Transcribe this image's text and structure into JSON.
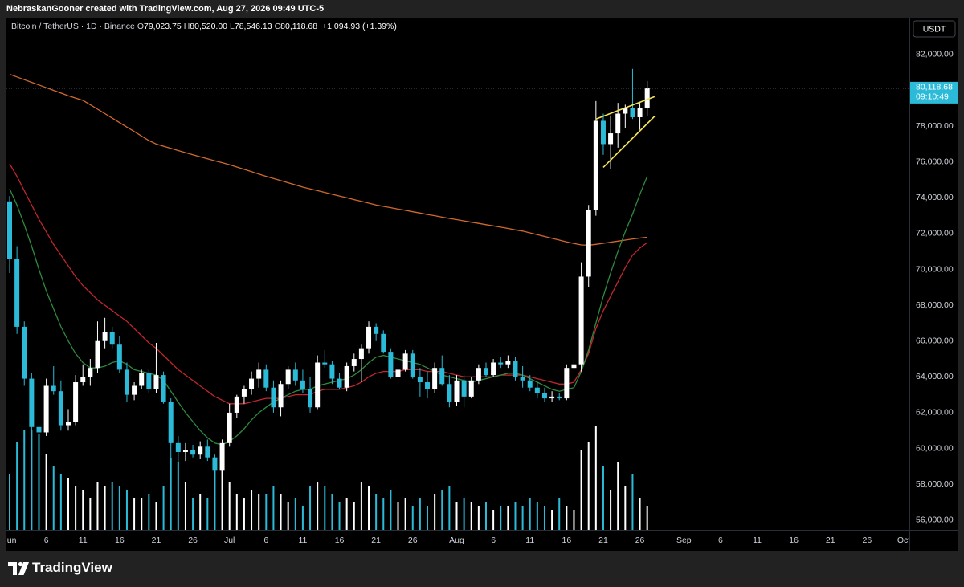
{
  "attribution": "NebraskanGooner created with TradingView.com, Aug 27, 2026 09:49 UTC-5",
  "brand": "TradingView",
  "chart_data": {
    "type": "candlestick",
    "title": "Bitcoin / TetherUS · 1D · Binance",
    "status_line": [
      {
        "label": "O",
        "value": "79,023.75"
      },
      {
        "label": "H",
        "value": "80,520.00"
      },
      {
        "label": "L",
        "value": "78,546.13"
      },
      {
        "label": "C",
        "value": "80,118.68"
      }
    ],
    "change": "+1,094.93 (+1.39%)",
    "currency": "USDT",
    "last_price": {
      "label": "80,118.68",
      "countdown": "09:10:49"
    },
    "up_color": "#ffffff",
    "down_color": "#2bbbd8",
    "x": [
      "Jun 1",
      "Jun 2",
      "Jun 3",
      "Jun 4",
      "Jun 5",
      "Jun 6",
      "Jun 7",
      "Jun 8",
      "Jun 9",
      "Jun 10",
      "Jun 11",
      "Jun 12",
      "Jun 13",
      "Jun 14",
      "Jun 15",
      "Jun 16",
      "Jun 17",
      "Jun 18",
      "Jun 19",
      "Jun 20",
      "Jun 21",
      "Jun 22",
      "Jun 23",
      "Jun 24",
      "Jun 25",
      "Jun 26",
      "Jun 27",
      "Jun 28",
      "Jun 29",
      "Jun 30",
      "Jul 1",
      "Jul 2",
      "Jul 3",
      "Jul 4",
      "Jul 5",
      "Jul 6",
      "Jul 7",
      "Jul 8",
      "Jul 9",
      "Jul 10",
      "Jul 11",
      "Jul 12",
      "Jul 13",
      "Jul 14",
      "Jul 15",
      "Jul 16",
      "Jul 17",
      "Jul 18",
      "Jul 19",
      "Jul 20",
      "Jul 21",
      "Jul 22",
      "Jul 23",
      "Jul 24",
      "Jul 25",
      "Jul 26",
      "Jul 27",
      "Jul 28",
      "Jul 29",
      "Jul 30",
      "Jul 31",
      "Aug 1",
      "Aug 2",
      "Aug 3",
      "Aug 4",
      "Aug 5",
      "Aug 6",
      "Aug 7",
      "Aug 8",
      "Aug 9",
      "Aug 10",
      "Aug 11",
      "Aug 12",
      "Aug 13",
      "Aug 14",
      "Aug 15",
      "Aug 16",
      "Aug 17",
      "Aug 18",
      "Aug 19",
      "Aug 20",
      "Aug 21",
      "Aug 22",
      "Aug 23",
      "Aug 24",
      "Aug 25",
      "Aug 26",
      "Aug 27"
    ],
    "open": [
      73800,
      70600,
      66800,
      63900,
      61200,
      60900,
      63500,
      63200,
      61300,
      61500,
      63700,
      64000,
      64500,
      66000,
      66500,
      65800,
      64400,
      63000,
      63500,
      64200,
      63300,
      64100,
      62600,
      60300,
      59800,
      59900,
      59700,
      60100,
      59500,
      58800,
      60300,
      62000,
      62900,
      63300,
      63900,
      64400,
      63400,
      62300,
      63600,
      64400,
      63800,
      63300,
      62300,
      64800,
      64700,
      63900,
      63400,
      64600,
      65000,
      65600,
      66800,
      66400,
      65400,
      64000,
      64400,
      65300,
      64000,
      63700,
      63300,
      64500,
      63600,
      62600,
      63800,
      62900,
      63800,
      64500,
      64100,
      64800,
      64700,
      64900,
      64000,
      63800,
      63400,
      63100,
      62800,
      62900,
      62800,
      64500,
      64700,
      69600,
      73300,
      78300,
      77000,
      77600,
      78700,
      79000,
      78500,
      79023.75
    ],
    "high": [
      74100,
      71300,
      67100,
      64200,
      61800,
      63900,
      64600,
      63800,
      62200,
      64100,
      64700,
      65000,
      67100,
      67300,
      66800,
      66300,
      64800,
      63700,
      64400,
      64400,
      65900,
      64300,
      62800,
      60700,
      60300,
      60200,
      60400,
      60500,
      59700,
      60500,
      62500,
      63000,
      63500,
      64300,
      64800,
      64700,
      63800,
      63800,
      64600,
      64800,
      64400,
      64000,
      65200,
      65500,
      64900,
      64200,
      64800,
      65300,
      65800,
      67100,
      67000,
      66600,
      65600,
      64500,
      65500,
      65500,
      64500,
      64300,
      64800,
      65200,
      64100,
      64100,
      64100,
      64000,
      64700,
      64800,
      65000,
      65100,
      65200,
      65100,
      64600,
      64100,
      63700,
      63400,
      63200,
      63100,
      64700,
      65000,
      70400,
      73600,
      79400,
      78700,
      78600,
      79300,
      79200,
      81200,
      79300,
      80520
    ],
    "low": [
      69800,
      66400,
      63500,
      60300,
      60500,
      60700,
      63000,
      61000,
      61000,
      61300,
      63500,
      63500,
      64200,
      65600,
      65600,
      64200,
      62600,
      62700,
      63300,
      63100,
      63100,
      62500,
      58600,
      58900,
      59300,
      59500,
      59400,
      59300,
      58400,
      58400,
      60100,
      61700,
      62500,
      63000,
      63400,
      63200,
      62000,
      61800,
      63300,
      63500,
      63100,
      62000,
      62200,
      64500,
      63600,
      63300,
      63200,
      64300,
      63700,
      65300,
      66000,
      65300,
      63900,
      63600,
      64300,
      63900,
      62900,
      62800,
      63100,
      63500,
      62300,
      62400,
      62300,
      62800,
      63600,
      64000,
      64000,
      64500,
      64500,
      63800,
      63400,
      63200,
      62800,
      62600,
      62600,
      62700,
      62700,
      64400,
      64300,
      69000,
      73000,
      76400,
      75600,
      76800,
      77900,
      78400,
      77800,
      78546.13
    ],
    "close": [
      70600,
      66800,
      63900,
      61200,
      60900,
      63500,
      63200,
      61300,
      61500,
      63700,
      64000,
      64500,
      66000,
      66500,
      65800,
      64400,
      63000,
      63500,
      64200,
      63300,
      64100,
      62600,
      60300,
      59800,
      59900,
      59700,
      60100,
      59500,
      58800,
      60300,
      62000,
      62900,
      63300,
      63900,
      64400,
      63400,
      62300,
      63600,
      64400,
      63800,
      63300,
      62300,
      64800,
      64700,
      63900,
      63400,
      64600,
      65000,
      65600,
      66800,
      66400,
      65400,
      64000,
      64400,
      65300,
      64000,
      63700,
      63300,
      64500,
      63600,
      62600,
      63800,
      62900,
      63800,
      64500,
      64100,
      64800,
      64700,
      64900,
      64000,
      63800,
      63400,
      63100,
      62800,
      62900,
      62800,
      64500,
      64700,
      69600,
      73300,
      78300,
      77000,
      77600,
      78700,
      79000,
      78500,
      79023.75,
      80118.68
    ],
    "volume": [
      70,
      110,
      125,
      125,
      120,
      95,
      80,
      70,
      65,
      55,
      50,
      40,
      60,
      55,
      60,
      55,
      50,
      40,
      40,
      45,
      35,
      55,
      90,
      85,
      60,
      40,
      45,
      40,
      85,
      75,
      60,
      45,
      40,
      50,
      45,
      45,
      55,
      45,
      35,
      40,
      30,
      55,
      60,
      55,
      45,
      35,
      40,
      35,
      60,
      55,
      45,
      40,
      50,
      35,
      40,
      30,
      40,
      30,
      45,
      50,
      55,
      35,
      40,
      35,
      30,
      35,
      25,
      30,
      30,
      35,
      30,
      40,
      35,
      30,
      25,
      40,
      30,
      25,
      100,
      110,
      130,
      80,
      50,
      85,
      55,
      70,
      40,
      30
    ],
    "lines": [
      {
        "color": "#d2692d",
        "values": [
          80900,
          80750,
          80600,
          80450,
          80300,
          80150,
          80000,
          79850,
          79700,
          79570,
          79440,
          79200,
          78950,
          78700,
          78450,
          78200,
          77950,
          77700,
          77450,
          77200,
          77000,
          76880,
          76760,
          76640,
          76520,
          76400,
          76290,
          76180,
          76070,
          75960,
          75850,
          75720,
          75590,
          75460,
          75330,
          75200,
          75080,
          74960,
          74840,
          74720,
          74600,
          74500,
          74400,
          74300,
          74200,
          74100,
          74000,
          73900,
          73800,
          73700,
          73600,
          73520,
          73450,
          73370,
          73300,
          73220,
          73150,
          73070,
          73000,
          72920,
          72850,
          72780,
          72710,
          72640,
          72570,
          72500,
          72430,
          72360,
          72290,
          72210,
          72140,
          72040,
          71940,
          71840,
          71740,
          71640,
          71540,
          71450,
          71370,
          71350,
          71400,
          71460,
          71520,
          71580,
          71640,
          71700,
          71750,
          71800
        ]
      },
      {
        "color": "#c2262e",
        "values": [
          75900,
          75200,
          74400,
          73600,
          72800,
          72100,
          71400,
          70800,
          70200,
          69600,
          69100,
          68700,
          68300,
          68000,
          67700,
          67400,
          67100,
          66700,
          66300,
          65900,
          65600,
          65200,
          64800,
          64400,
          64100,
          63800,
          63500,
          63200,
          62900,
          62700,
          62500,
          62500,
          62500,
          62600,
          62700,
          62800,
          62800,
          62800,
          62900,
          63000,
          63000,
          63000,
          63200,
          63300,
          63300,
          63300,
          63400,
          63500,
          63700,
          64000,
          64200,
          64300,
          64300,
          64300,
          64400,
          64400,
          64400,
          64300,
          64300,
          64300,
          64200,
          64100,
          64000,
          64000,
          64000,
          64000,
          64000,
          64100,
          64100,
          64100,
          64100,
          64000,
          63900,
          63800,
          63700,
          63600,
          63600,
          63700,
          64400,
          65300,
          66700,
          67700,
          68500,
          69300,
          70100,
          70800,
          71200,
          71500
        ]
      },
      {
        "color": "#2e8b3f",
        "values": [
          74500,
          73600,
          72500,
          71300,
          70000,
          68800,
          67800,
          66800,
          66000,
          65300,
          64800,
          64500,
          64500,
          64600,
          64800,
          64900,
          64700,
          64400,
          64300,
          64200,
          64100,
          63800,
          63200,
          62600,
          62000,
          61500,
          61000,
          60600,
          60300,
          60200,
          60400,
          60700,
          61100,
          61600,
          62000,
          62300,
          62600,
          62800,
          63000,
          63200,
          63300,
          63300,
          63500,
          63600,
          63700,
          63800,
          63900,
          64100,
          64400,
          64800,
          65100,
          65200,
          65100,
          65000,
          64900,
          64800,
          64700,
          64500,
          64300,
          64100,
          64000,
          63900,
          63800,
          63700,
          63800,
          63900,
          64000,
          64100,
          64200,
          64200,
          64100,
          63900,
          63700,
          63500,
          63300,
          63200,
          63300,
          63400,
          64300,
          65500,
          67000,
          68500,
          69800,
          71000,
          72100,
          73100,
          74200,
          75200
        ]
      }
    ],
    "drawings": [
      {
        "color": "#f2e35b",
        "points": [
          [
            "Aug 20",
            78400
          ],
          [
            "Aug 28",
            79650
          ]
        ]
      },
      {
        "color": "#f2e35b",
        "points": [
          [
            "Aug 21",
            75700
          ],
          [
            "Aug 28",
            78550
          ]
        ]
      }
    ],
    "ylim": [
      55450,
      84060
    ],
    "yticks": [
      {
        "value": 56000,
        "label": "56,000.00"
      },
      {
        "value": 58000,
        "label": "58,000.00"
      },
      {
        "value": 60000,
        "label": "60,000.00"
      },
      {
        "value": 62000,
        "label": "62,000.00"
      },
      {
        "value": 64000,
        "label": "64,000.00"
      },
      {
        "value": 66000,
        "label": "66,000.00"
      },
      {
        "value": 68000,
        "label": "68,000.00"
      },
      {
        "value": 70000,
        "label": "70,000.00"
      },
      {
        "value": 72000,
        "label": "72,000.00"
      },
      {
        "value": 74000,
        "label": "74,000.00"
      },
      {
        "value": 76000,
        "label": "76,000.00"
      },
      {
        "value": 78000,
        "label": "78,000.00"
      },
      {
        "value": 80000,
        "label": "80,000.00"
      },
      {
        "value": 82000,
        "label": "82,000.00"
      }
    ],
    "xlim": [
      "Jun 1",
      "Oct 1"
    ],
    "xticks": [
      {
        "value": "Jun 1",
        "label": "Jun"
      },
      {
        "value": "Jun 6",
        "label": "6"
      },
      {
        "value": "Jun 11",
        "label": "11"
      },
      {
        "value": "Jun 16",
        "label": "16"
      },
      {
        "value": "Jun 21",
        "label": "21"
      },
      {
        "value": "Jun 26",
        "label": "26"
      },
      {
        "value": "Jul 1",
        "label": "Jul"
      },
      {
        "value": "Jul 6",
        "label": "6"
      },
      {
        "value": "Jul 11",
        "label": "11"
      },
      {
        "value": "Jul 16",
        "label": "16"
      },
      {
        "value": "Jul 21",
        "label": "21"
      },
      {
        "value": "Jul 26",
        "label": "26"
      },
      {
        "value": "Aug 1",
        "label": "Aug"
      },
      {
        "value": "Aug 6",
        "label": "6"
      },
      {
        "value": "Aug 11",
        "label": "11"
      },
      {
        "value": "Aug 16",
        "label": "16"
      },
      {
        "value": "Aug 21",
        "label": "21"
      },
      {
        "value": "Aug 26",
        "label": "26"
      },
      {
        "value": "Sep 1",
        "label": "Sep"
      },
      {
        "value": "Sep 6",
        "label": "6"
      },
      {
        "value": "Sep 11",
        "label": "11"
      },
      {
        "value": "Sep 16",
        "label": "16"
      },
      {
        "value": "Sep 21",
        "label": "21"
      },
      {
        "value": "Sep 26",
        "label": "26"
      },
      {
        "value": "Oct 1",
        "label": "Oct"
      }
    ]
  }
}
